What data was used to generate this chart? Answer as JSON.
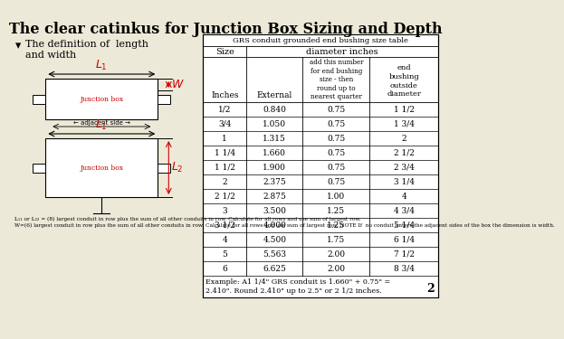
{
  "title": "The clear catinkus for Junction Box Sizing and Depth",
  "bullet_char": "▾",
  "bullet_text": "The definition of  length\nand width",
  "table_title": "GRS conduit grounded end bushing size table",
  "rows": [
    [
      "1/2",
      "0.840",
      "0.75",
      "1 1/2"
    ],
    [
      "3/4",
      "1.050",
      "0.75",
      "1 3/4"
    ],
    [
      "1",
      "1.315",
      "0.75",
      "2"
    ],
    [
      "1 1/4",
      "1.660",
      "0.75",
      "2 1/2"
    ],
    [
      "1 1/2",
      "1.900",
      "0.75",
      "2 3/4"
    ],
    [
      "2",
      "2.375",
      "0.75",
      "3 1/4"
    ],
    [
      "2 1/2",
      "2.875",
      "1.00",
      "4"
    ],
    [
      "3",
      "3.500",
      "1.25",
      "4 3/4"
    ],
    [
      "3 1/2",
      "4.000",
      "1.25",
      "5 1/4"
    ],
    [
      "4",
      "4.500",
      "1.75",
      "6 1/4"
    ],
    [
      "5",
      "5.563",
      "2.00",
      "7 1/2"
    ],
    [
      "6",
      "6.625",
      "2.00",
      "8 3/4"
    ]
  ],
  "example_line1": "Example: A1 1/4\" GRS conduit is 1.660\" + 0.75\" =",
  "example_line2": "2.410\". Round 2.410\" up to 2.5\" or 2 1/2 inches.",
  "page_num": "2",
  "footnote_lines": [
    "L₁₁ or L₂₂ = (8) largest conduit in row plus the sum of all other conduits in row. Calculate for all rows and use sum of largest row.",
    "W=(6) largest conduit in row plus the sum of all other conduits in row. Calculate for all rows and use sum of largest row. NOTE If  no conduit enters the adjacent sides of the box the dimension is width."
  ],
  "bg_color": "#ece9d8",
  "white": "#ffffff",
  "black": "#000000",
  "red": "#cc0000"
}
